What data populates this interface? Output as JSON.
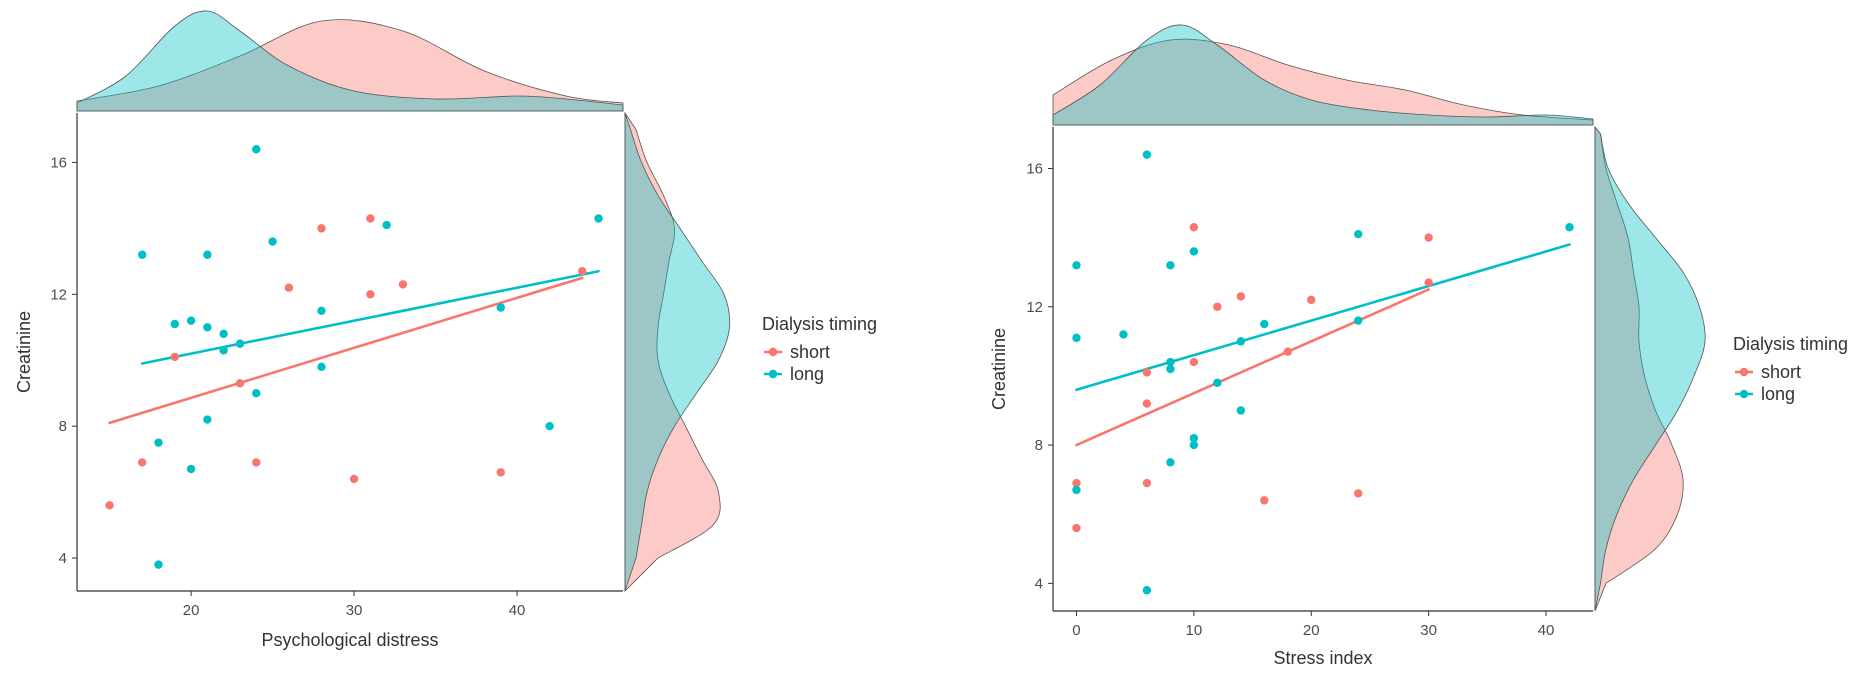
{
  "figure": {
    "legend_position": "right"
  },
  "chart_data": [
    {
      "type": "scatter",
      "subtype": "scatter with linear fits and marginal density plots",
      "title": "",
      "xlabel": "Psychological distress",
      "ylabel": "Creatinine",
      "xlim": [
        13,
        46.5
      ],
      "ylim": [
        3,
        17.5
      ],
      "xticks": [
        20,
        30,
        40
      ],
      "yticks": [
        4,
        8,
        12,
        16
      ],
      "grid": false,
      "legend": {
        "title": "Dialysis timing",
        "entries": [
          "short",
          "long"
        ],
        "position": "right"
      },
      "series": [
        {
          "name": "short",
          "color": "#F8766D",
          "fill": "#F8766D",
          "points": [
            [
              15,
              5.6
            ],
            [
              17,
              6.9
            ],
            [
              19,
              10.1
            ],
            [
              23,
              9.3
            ],
            [
              24,
              6.9
            ],
            [
              26,
              12.2
            ],
            [
              28,
              14.0
            ],
            [
              30,
              6.4
            ],
            [
              31,
              14.3
            ],
            [
              31,
              12.0
            ],
            [
              33,
              12.3
            ],
            [
              39,
              6.6
            ],
            [
              44,
              12.7
            ]
          ],
          "fit": {
            "x": [
              15,
              44
            ],
            "y": [
              8.1,
              12.5
            ]
          },
          "density_x": {
            "x": [
              13,
              18,
              23,
              28,
              33,
              38,
              43,
              46.5
            ],
            "d": [
              0.1,
              0.25,
              0.55,
              0.9,
              0.8,
              0.4,
              0.15,
              0.08
            ]
          },
          "density_y": {
            "y": [
              4,
              5,
              6,
              7,
              8,
              9,
              10,
              11,
              12,
              13,
              14,
              15,
              16,
              17
            ],
            "d": [
              0.3,
              0.8,
              0.85,
              0.7,
              0.55,
              0.4,
              0.3,
              0.3,
              0.35,
              0.4,
              0.45,
              0.35,
              0.2,
              0.1
            ]
          }
        },
        {
          "name": "long",
          "color": "#00BFC4",
          "fill": "#00BFC4",
          "points": [
            [
              17,
              13.2
            ],
            [
              18,
              7.5
            ],
            [
              18,
              3.8
            ],
            [
              19,
              11.1
            ],
            [
              20,
              11.2
            ],
            [
              20,
              6.7
            ],
            [
              21,
              13.2
            ],
            [
              21,
              11.0
            ],
            [
              21,
              8.2
            ],
            [
              22,
              10.8
            ],
            [
              22,
              10.3
            ],
            [
              23,
              10.5
            ],
            [
              24,
              16.4
            ],
            [
              24,
              9.0
            ],
            [
              25,
              13.6
            ],
            [
              28,
              11.5
            ],
            [
              28,
              9.8
            ],
            [
              32,
              14.1
            ],
            [
              39,
              11.6
            ],
            [
              42,
              8.0
            ],
            [
              45,
              14.3
            ]
          ],
          "fit": {
            "x": [
              17,
              45
            ],
            "y": [
              9.9,
              12.7
            ]
          },
          "density_x": {
            "x": [
              13,
              16,
              19,
              21,
              23,
              26,
              30,
              35,
              40,
              43,
              46.5
            ],
            "d": [
              0.08,
              0.35,
              0.85,
              1.0,
              0.8,
              0.45,
              0.2,
              0.12,
              0.15,
              0.12,
              0.06
            ]
          },
          "density_y": {
            "y": [
              4,
              5,
              6,
              7,
              8,
              9,
              10,
              11,
              12,
              13,
              14,
              15,
              16,
              17
            ],
            "d": [
              0.1,
              0.15,
              0.2,
              0.3,
              0.45,
              0.65,
              0.85,
              0.95,
              0.9,
              0.7,
              0.5,
              0.3,
              0.15,
              0.05
            ]
          }
        }
      ]
    },
    {
      "type": "scatter",
      "subtype": "scatter with linear fits and marginal density plots",
      "title": "",
      "xlabel": "Stress index",
      "ylabel": "Creatinine",
      "xlim": [
        -2,
        44
      ],
      "ylim": [
        3.2,
        17.2
      ],
      "xticks": [
        0,
        10,
        20,
        30,
        40
      ],
      "yticks": [
        4,
        8,
        12,
        16
      ],
      "grid": false,
      "legend": {
        "title": "Dialysis timing",
        "entries": [
          "short",
          "long"
        ],
        "position": "right"
      },
      "series": [
        {
          "name": "short",
          "color": "#F8766D",
          "fill": "#F8766D",
          "points": [
            [
              0,
              6.9
            ],
            [
              0,
              5.6
            ],
            [
              6,
              10.1
            ],
            [
              6,
              9.2
            ],
            [
              6,
              6.9
            ],
            [
              10,
              14.3
            ],
            [
              10,
              10.4
            ],
            [
              12,
              12.0
            ],
            [
              14,
              12.3
            ],
            [
              16,
              6.4
            ],
            [
              18,
              10.7
            ],
            [
              20,
              12.2
            ],
            [
              24,
              6.6
            ],
            [
              30,
              14.0
            ],
            [
              30,
              12.7
            ]
          ],
          "fit": {
            "x": [
              0,
              30
            ],
            "y": [
              8.0,
              12.5
            ]
          },
          "density_x": {
            "x": [
              -2,
              3,
              8,
              13,
              18,
              23,
              28,
              33,
              38,
              44
            ],
            "d": [
              0.3,
              0.65,
              0.85,
              0.8,
              0.6,
              0.45,
              0.35,
              0.2,
              0.1,
              0.05
            ]
          },
          "density_y": {
            "y": [
              4,
              5,
              6,
              7,
              8,
              9,
              10,
              11,
              12,
              13,
              14,
              15,
              16,
              17
            ],
            "d": [
              0.1,
              0.55,
              0.75,
              0.8,
              0.7,
              0.55,
              0.45,
              0.4,
              0.4,
              0.35,
              0.3,
              0.2,
              0.1,
              0.05
            ]
          }
        },
        {
          "name": "long",
          "color": "#00BFC4",
          "fill": "#00BFC4",
          "points": [
            [
              0,
              13.2
            ],
            [
              0,
              11.1
            ],
            [
              0,
              6.7
            ],
            [
              4,
              11.2
            ],
            [
              6,
              16.4
            ],
            [
              6,
              3.8
            ],
            [
              8,
              13.2
            ],
            [
              8,
              10.4
            ],
            [
              8,
              10.2
            ],
            [
              8,
              7.5
            ],
            [
              10,
              13.6
            ],
            [
              10,
              8.2
            ],
            [
              10,
              8.0
            ],
            [
              12,
              9.8
            ],
            [
              14,
              11.0
            ],
            [
              14,
              9.0
            ],
            [
              16,
              11.5
            ],
            [
              24,
              14.1
            ],
            [
              24,
              11.6
            ],
            [
              42,
              14.3
            ]
          ],
          "fit": {
            "x": [
              0,
              42
            ],
            "y": [
              9.6,
              13.8
            ]
          },
          "density_x": {
            "x": [
              -2,
              2,
              6,
              9,
              12,
              16,
              20,
              25,
              30,
              35,
              40,
              44
            ],
            "d": [
              0.1,
              0.4,
              0.85,
              1.0,
              0.8,
              0.45,
              0.25,
              0.15,
              0.1,
              0.08,
              0.1,
              0.06
            ]
          },
          "density_y": {
            "y": [
              4,
              5,
              6,
              7,
              8,
              9,
              10,
              11,
              12,
              13,
              14,
              15,
              16,
              17
            ],
            "d": [
              0.05,
              0.1,
              0.2,
              0.35,
              0.55,
              0.75,
              0.9,
              1.0,
              0.95,
              0.8,
              0.55,
              0.3,
              0.12,
              0.05
            ]
          }
        }
      ]
    }
  ]
}
